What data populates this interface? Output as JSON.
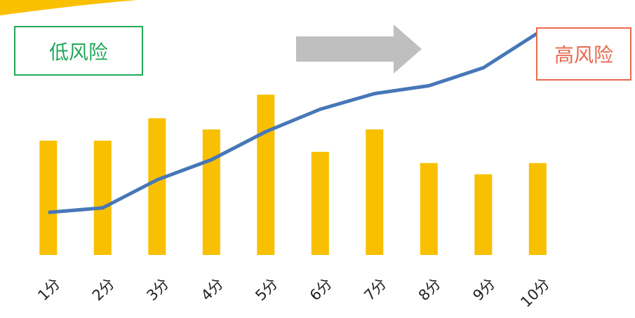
{
  "labels": {
    "low_risk": "低风险",
    "high_risk": "高风险"
  },
  "colors": {
    "bar": "#f8c000",
    "line": "#4677b8",
    "arrow": "#bfbfbf",
    "top_accent": "#f8c000",
    "low_risk": "#22a85a",
    "high_risk": "#e8694e"
  },
  "chart_data": {
    "type": "bar",
    "categories": [
      "1分",
      "2分",
      "3分",
      "4分",
      "5分",
      "6分",
      "7分",
      "8分",
      "9分",
      "10分"
    ],
    "series": [
      {
        "type": "bar",
        "values": [
          102,
          102,
          122,
          112,
          143,
          92,
          112,
          82,
          72,
          82
        ]
      },
      {
        "type": "line",
        "values": [
          38,
          42,
          67,
          85,
          110,
          130,
          144,
          151,
          167,
          198
        ]
      }
    ],
    "ylim": [
      0,
      200
    ],
    "grid": false,
    "legend": "none"
  }
}
